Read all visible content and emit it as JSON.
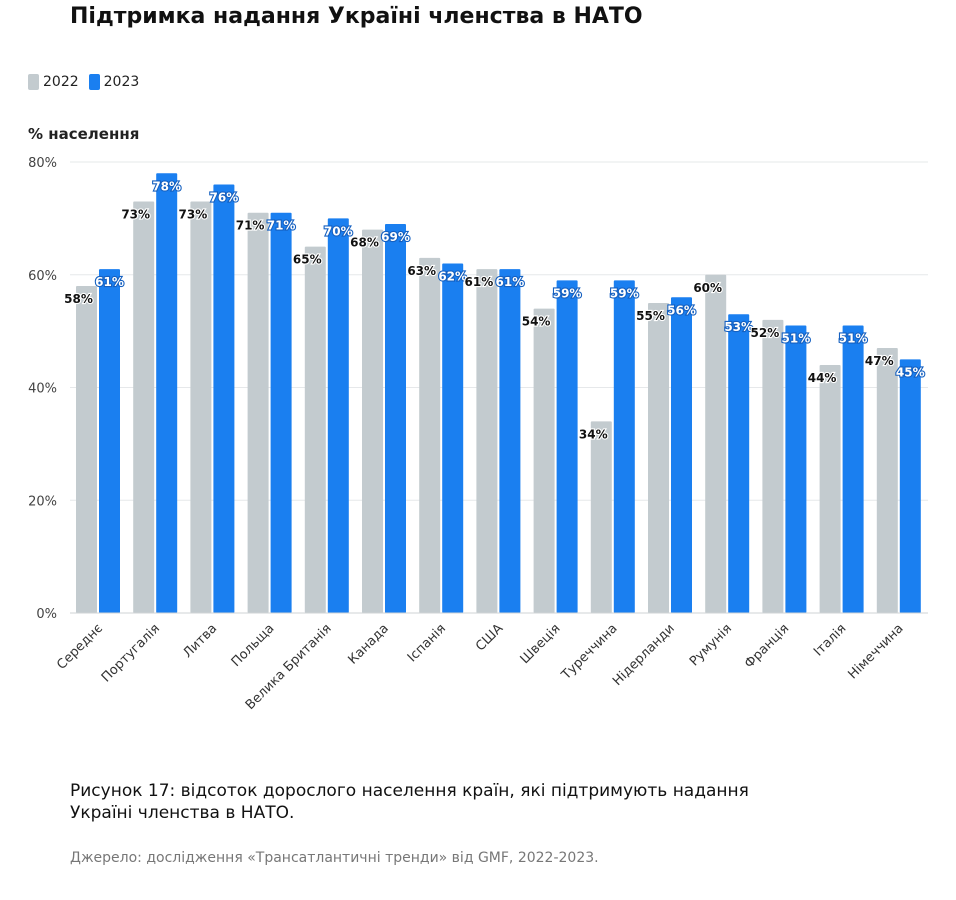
{
  "title": "Підтримка надання Україні членства в НАТО",
  "caption": "Рисунок 17: відсоток дорослого населення країн, які підтримують надання Україні членства в НАТО.",
  "source": "Джерело: дослідження «Трансатлантичні тренди» від GMF, 2022-2023.",
  "colors": {
    "s2022": "#c3cbcf",
    "s2023": "#1a7ff0",
    "grid": "#e6e8ea"
  },
  "chart_data": {
    "type": "bar",
    "ylabel": "% населення",
    "ylim": [
      0,
      80
    ],
    "yticks": [
      "0%",
      "20%",
      "40%",
      "60%",
      "80%"
    ],
    "grid": true,
    "legend_position": "top-left",
    "categories": [
      "Середнє",
      "Португалія",
      "Литва",
      "Польща",
      "Велика Британія",
      "Канада",
      "Іспанія",
      "США",
      "Швеція",
      "Туреччина",
      "Нідерланди",
      "Румунія",
      "Франція",
      "Італія",
      "Німеччина"
    ],
    "series": [
      {
        "name": "2022",
        "values": [
          58,
          73,
          73,
          71,
          65,
          68,
          63,
          61,
          54,
          34,
          55,
          60,
          52,
          44,
          47
        ],
        "labels": [
          "58%",
          "73%",
          "73%",
          "71%",
          "65%",
          "68%",
          "63%",
          "61%",
          "54%",
          "34%",
          "55%",
          "60%",
          "52%",
          "44%",
          "47%"
        ]
      },
      {
        "name": "2023",
        "values": [
          61,
          78,
          76,
          71,
          70,
          69,
          62,
          61,
          59,
          59,
          56,
          53,
          51,
          51,
          45
        ],
        "labels": [
          "61%",
          "78%",
          "76%",
          "71%",
          "70%",
          "69%",
          "62%",
          "61%",
          "59%",
          "59%",
          "56%",
          "53%",
          "51%",
          "51%",
          "45%"
        ]
      }
    ]
  }
}
